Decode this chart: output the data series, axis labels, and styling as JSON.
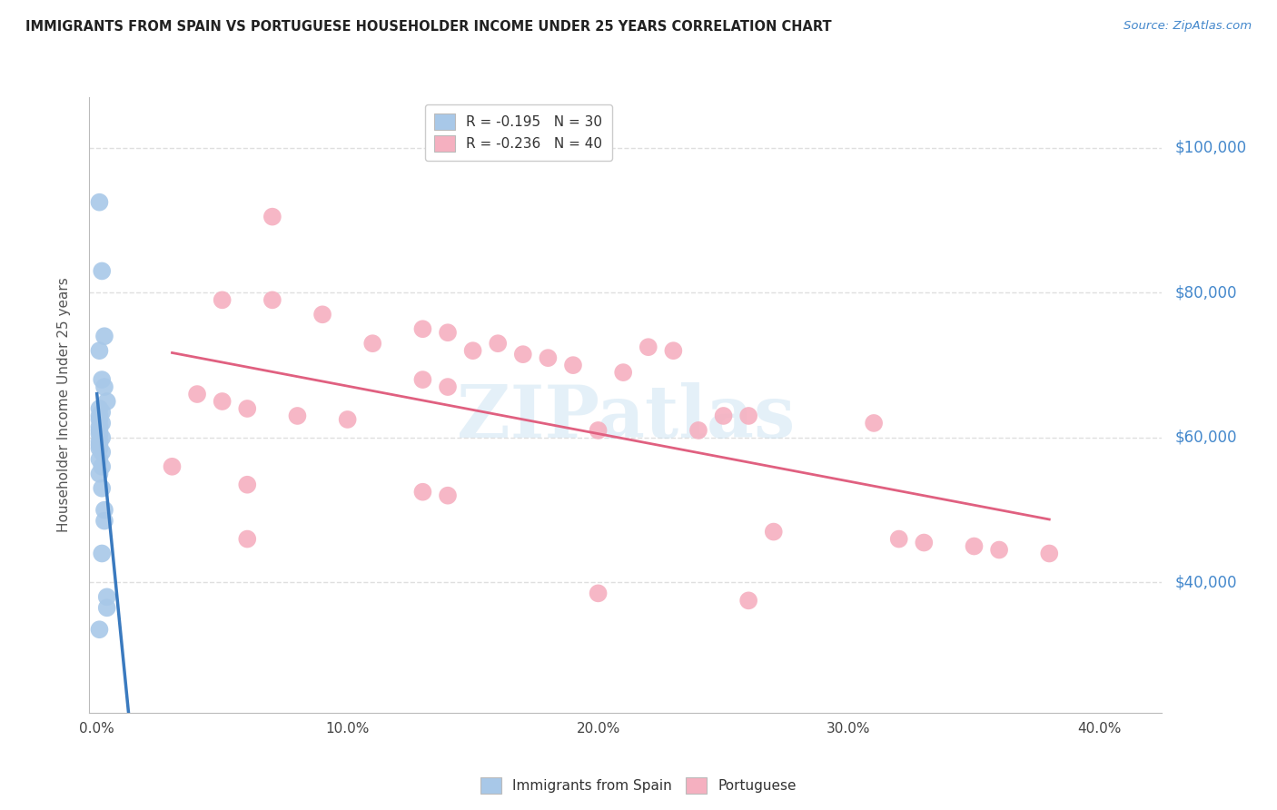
{
  "title": "IMMIGRANTS FROM SPAIN VS PORTUGUESE HOUSEHOLDER INCOME UNDER 25 YEARS CORRELATION CHART",
  "source": "Source: ZipAtlas.com",
  "ylabel": "Householder Income Under 25 years",
  "xlabel_ticks": [
    "0.0%",
    "10.0%",
    "20.0%",
    "30.0%",
    "40.0%"
  ],
  "xlabel_vals": [
    0.0,
    0.1,
    0.2,
    0.3,
    0.4
  ],
  "ylabel_ticks": [
    "$40,000",
    "$60,000",
    "$80,000",
    "$100,000"
  ],
  "ylabel_vals": [
    40000,
    60000,
    80000,
    100000
  ],
  "ylim": [
    22000,
    107000
  ],
  "xlim": [
    -0.003,
    0.425
  ],
  "watermark": "ZIPatlas",
  "legend_blue_r": "-0.195",
  "legend_blue_n": "30",
  "legend_pink_r": "-0.236",
  "legend_pink_n": "40",
  "blue_color": "#a8c8e8",
  "pink_color": "#f5b0c0",
  "blue_line_color": "#3a7abf",
  "pink_line_color": "#e06080",
  "background_color": "#ffffff",
  "grid_color": "#d8d8d8",
  "title_color": "#222222",
  "right_label_color": "#4488cc",
  "blue_scatter": [
    [
      0.001,
      92500
    ],
    [
      0.002,
      83000
    ],
    [
      0.003,
      74000
    ],
    [
      0.001,
      72000
    ],
    [
      0.002,
      68000
    ],
    [
      0.003,
      67000
    ],
    [
      0.004,
      65000
    ],
    [
      0.001,
      64000
    ],
    [
      0.002,
      63500
    ],
    [
      0.001,
      63000
    ],
    [
      0.001,
      62500
    ],
    [
      0.002,
      62000
    ],
    [
      0.001,
      61500
    ],
    [
      0.001,
      61000
    ],
    [
      0.001,
      60500
    ],
    [
      0.002,
      60000
    ],
    [
      0.001,
      59500
    ],
    [
      0.001,
      59000
    ],
    [
      0.001,
      58500
    ],
    [
      0.002,
      58000
    ],
    [
      0.001,
      57000
    ],
    [
      0.002,
      56000
    ],
    [
      0.001,
      55000
    ],
    [
      0.002,
      53000
    ],
    [
      0.003,
      50000
    ],
    [
      0.003,
      48500
    ],
    [
      0.002,
      44000
    ],
    [
      0.004,
      38000
    ],
    [
      0.004,
      36500
    ],
    [
      0.001,
      33500
    ]
  ],
  "pink_scatter": [
    [
      0.07,
      90500
    ],
    [
      0.05,
      79000
    ],
    [
      0.07,
      79000
    ],
    [
      0.09,
      77000
    ],
    [
      0.13,
      75000
    ],
    [
      0.14,
      74500
    ],
    [
      0.11,
      73000
    ],
    [
      0.16,
      73000
    ],
    [
      0.15,
      72000
    ],
    [
      0.22,
      72500
    ],
    [
      0.23,
      72000
    ],
    [
      0.17,
      71500
    ],
    [
      0.18,
      71000
    ],
    [
      0.19,
      70000
    ],
    [
      0.21,
      69000
    ],
    [
      0.04,
      66000
    ],
    [
      0.13,
      68000
    ],
    [
      0.14,
      67000
    ],
    [
      0.05,
      65000
    ],
    [
      0.06,
      64000
    ],
    [
      0.25,
      63000
    ],
    [
      0.26,
      63000
    ],
    [
      0.1,
      62500
    ],
    [
      0.2,
      61000
    ],
    [
      0.24,
      61000
    ],
    [
      0.08,
      63000
    ],
    [
      0.03,
      56000
    ],
    [
      0.06,
      53500
    ],
    [
      0.14,
      52000
    ],
    [
      0.13,
      52500
    ],
    [
      0.31,
      62000
    ],
    [
      0.06,
      46000
    ],
    [
      0.27,
      47000
    ],
    [
      0.32,
      46000
    ],
    [
      0.33,
      45500
    ],
    [
      0.35,
      45000
    ],
    [
      0.36,
      44500
    ],
    [
      0.38,
      44000
    ],
    [
      0.2,
      38500
    ],
    [
      0.26,
      37500
    ]
  ]
}
